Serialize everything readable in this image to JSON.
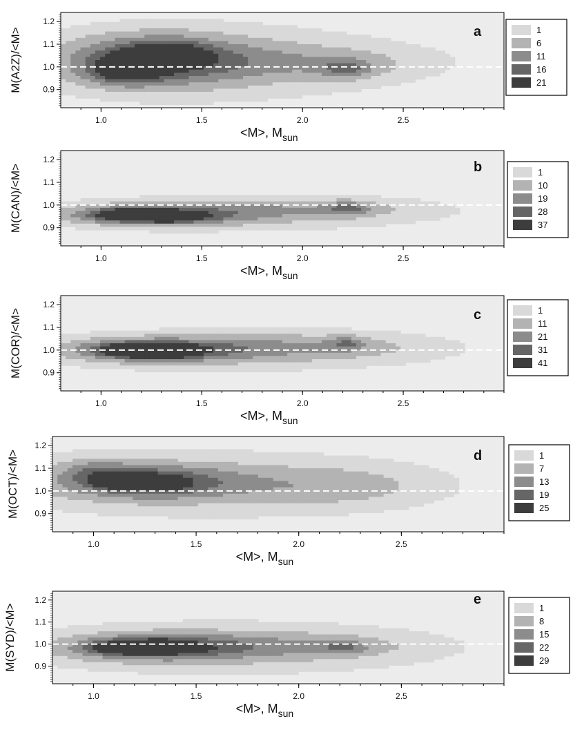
{
  "figure": {
    "colors": {
      "background": "#ececec",
      "refline": "#ffffff",
      "axis": "#111111"
    }
  },
  "chart_data": [
    {
      "type": "heatmap",
      "panel": "a",
      "xlabel_main": "<M>, M",
      "xlabel_sub": "sun",
      "ylabel": "M(A2Z)/<M>",
      "xlim": [
        0.8,
        3.0
      ],
      "ylim": [
        0.82,
        1.24
      ],
      "xticks": [
        "1.0",
        "1.5",
        "2.0",
        "2.5"
      ],
      "yticks": [
        "0.9",
        "1.0",
        "1.1",
        "1.2"
      ],
      "reference_y": 1.0,
      "legend": {
        "levels": [
          "1",
          "6",
          "11",
          "16",
          "21"
        ],
        "colors": [
          "#d9d9d9",
          "#b3b3b3",
          "#8c8c8c",
          "#666666",
          "#3d3d3d"
        ]
      },
      "blobs": [
        {
          "x": 1.6,
          "y": 1.02,
          "sx": 0.65,
          "sy": 0.11,
          "w": 0.35
        },
        {
          "x": 1.25,
          "y": 1.03,
          "sx": 0.32,
          "sy": 0.08,
          "w": 0.7
        },
        {
          "x": 1.12,
          "y": 0.98,
          "sx": 0.12,
          "sy": 0.04,
          "w": 0.55
        },
        {
          "x": 1.33,
          "y": 1.06,
          "sx": 0.12,
          "sy": 0.035,
          "w": 0.5
        },
        {
          "x": 1.12,
          "y": 1.04,
          "sx": 0.06,
          "sy": 0.02,
          "w": 0.4
        },
        {
          "x": 2.22,
          "y": 0.99,
          "sx": 0.1,
          "sy": 0.03,
          "w": 0.4
        },
        {
          "x": 2.1,
          "y": 1.02,
          "sx": 0.38,
          "sy": 0.05,
          "w": 0.22
        }
      ]
    },
    {
      "type": "heatmap",
      "panel": "b",
      "xlabel_main": "<M>, M",
      "xlabel_sub": "sun",
      "ylabel": "M(CAN)/<M>",
      "xlim": [
        0.8,
        3.0
      ],
      "ylim": [
        0.82,
        1.24
      ],
      "xticks": [
        "1.0",
        "1.5",
        "2.0",
        "2.5"
      ],
      "yticks": [
        "0.9",
        "1.0",
        "1.1",
        "1.2"
      ],
      "reference_y": 1.0,
      "legend": {
        "levels": [
          "1",
          "10",
          "19",
          "28",
          "37"
        ],
        "colors": [
          "#d9d9d9",
          "#b3b3b3",
          "#8c8c8c",
          "#666666",
          "#3d3d3d"
        ]
      },
      "blobs": [
        {
          "x": 1.7,
          "y": 0.965,
          "sx": 0.65,
          "sy": 0.05,
          "w": 0.38
        },
        {
          "x": 1.25,
          "y": 0.955,
          "sx": 0.3,
          "sy": 0.03,
          "w": 0.75
        },
        {
          "x": 1.15,
          "y": 0.96,
          "sx": 0.12,
          "sy": 0.02,
          "w": 0.55
        },
        {
          "x": 1.35,
          "y": 0.945,
          "sx": 0.1,
          "sy": 0.015,
          "w": 0.45
        },
        {
          "x": 2.23,
          "y": 0.985,
          "sx": 0.07,
          "sy": 0.02,
          "w": 0.4
        },
        {
          "x": 2.1,
          "y": 0.99,
          "sx": 0.35,
          "sy": 0.03,
          "w": 0.2
        }
      ]
    },
    {
      "type": "heatmap",
      "panel": "c",
      "xlabel_main": "<M>, M",
      "xlabel_sub": "sun",
      "ylabel": "M(COR)/<M>",
      "xlim": [
        0.8,
        3.0
      ],
      "ylim": [
        0.82,
        1.24
      ],
      "xticks": [
        "1.0",
        "1.5",
        "2.0",
        "2.5"
      ],
      "yticks": [
        "0.9",
        "1.0",
        "1.1",
        "1.2"
      ],
      "reference_y": 1.0,
      "legend": {
        "levels": [
          "1",
          "11",
          "21",
          "31",
          "41"
        ],
        "colors": [
          "#d9d9d9",
          "#b3b3b3",
          "#8c8c8c",
          "#666666",
          "#3d3d3d"
        ]
      },
      "blobs": [
        {
          "x": 1.7,
          "y": 1.0,
          "sx": 0.65,
          "sy": 0.06,
          "w": 0.38
        },
        {
          "x": 1.25,
          "y": 1.0,
          "sx": 0.3,
          "sy": 0.035,
          "w": 0.75
        },
        {
          "x": 1.15,
          "y": 1.0,
          "sx": 0.1,
          "sy": 0.02,
          "w": 0.55
        },
        {
          "x": 1.32,
          "y": 0.99,
          "sx": 0.1,
          "sy": 0.02,
          "w": 0.45
        },
        {
          "x": 2.22,
          "y": 1.03,
          "sx": 0.06,
          "sy": 0.02,
          "w": 0.35
        },
        {
          "x": 2.1,
          "y": 1.02,
          "sx": 0.38,
          "sy": 0.04,
          "w": 0.2
        }
      ]
    },
    {
      "type": "heatmap",
      "panel": "d",
      "xlabel_main": "<M>, M",
      "xlabel_sub": "sun",
      "ylabel": "M(OCT)/<M>",
      "xlim": [
        0.8,
        3.0
      ],
      "ylim": [
        0.82,
        1.24
      ],
      "xticks": [
        "1.0",
        "1.5",
        "2.0",
        "2.5"
      ],
      "yticks": [
        "0.9",
        "1.0",
        "1.1",
        "1.2"
      ],
      "reference_y": 1.0,
      "legend": {
        "levels": [
          "1",
          "7",
          "13",
          "19",
          "25"
        ],
        "colors": [
          "#d9d9d9",
          "#b3b3b3",
          "#8c8c8c",
          "#666666",
          "#3d3d3d"
        ]
      },
      "blobs": [
        {
          "x": 1.55,
          "y": 1.03,
          "sx": 0.75,
          "sy": 0.1,
          "w": 0.35
        },
        {
          "x": 1.25,
          "y": 1.04,
          "sx": 0.3,
          "sy": 0.05,
          "w": 0.7
        },
        {
          "x": 1.15,
          "y": 1.05,
          "sx": 0.1,
          "sy": 0.025,
          "w": 0.5
        },
        {
          "x": 1.3,
          "y": 1.03,
          "sx": 0.08,
          "sy": 0.02,
          "w": 0.4
        },
        {
          "x": 1.0,
          "y": 1.1,
          "sx": 0.12,
          "sy": 0.04,
          "w": 0.25
        },
        {
          "x": 2.2,
          "y": 1.02,
          "sx": 0.3,
          "sy": 0.06,
          "w": 0.22
        }
      ]
    },
    {
      "type": "heatmap",
      "panel": "e",
      "xlabel_main": "<M>, M",
      "xlabel_sub": "sun",
      "ylabel": "M(SYD)/<M>",
      "xlim": [
        0.8,
        3.0
      ],
      "ylim": [
        0.82,
        1.24
      ],
      "xticks": [
        "1.0",
        "1.5",
        "2.0",
        "2.5"
      ],
      "yticks": [
        "0.9",
        "1.0",
        "1.1",
        "1.2"
      ],
      "reference_y": 1.0,
      "legend": {
        "levels": [
          "1",
          "8",
          "15",
          "22",
          "29"
        ],
        "colors": [
          "#d9d9d9",
          "#b3b3b3",
          "#8c8c8c",
          "#666666",
          "#3d3d3d"
        ]
      },
      "blobs": [
        {
          "x": 1.65,
          "y": 0.985,
          "sx": 0.7,
          "sy": 0.08,
          "w": 0.38
        },
        {
          "x": 1.3,
          "y": 0.985,
          "sx": 0.3,
          "sy": 0.04,
          "w": 0.72
        },
        {
          "x": 1.13,
          "y": 0.985,
          "sx": 0.1,
          "sy": 0.02,
          "w": 0.5
        },
        {
          "x": 1.33,
          "y": 0.99,
          "sx": 0.08,
          "sy": 0.02,
          "w": 0.45
        },
        {
          "x": 2.22,
          "y": 0.985,
          "sx": 0.07,
          "sy": 0.02,
          "w": 0.35
        },
        {
          "x": 2.1,
          "y": 0.99,
          "sx": 0.35,
          "sy": 0.04,
          "w": 0.2
        }
      ]
    }
  ]
}
